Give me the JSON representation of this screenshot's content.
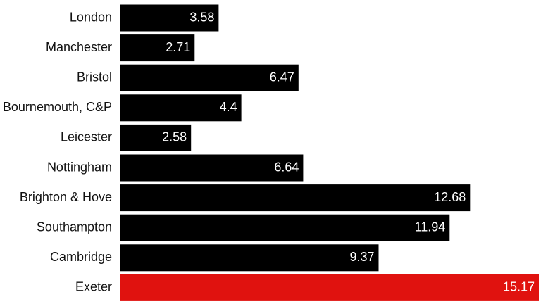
{
  "chart_data": {
    "type": "bar",
    "orientation": "horizontal",
    "categories": [
      "London",
      "Manchester",
      "Bristol",
      "Bournemouth, C&P",
      "Leicester",
      "Nottingham",
      "Brighton & Hove",
      "Southampton",
      "Cambridge",
      "Exeter"
    ],
    "values": [
      3.58,
      2.71,
      6.47,
      4.4,
      2.58,
      6.64,
      12.68,
      11.94,
      9.37,
      15.17
    ],
    "value_labels": [
      "3.58",
      "2.71",
      "6.47",
      "4.4",
      "2.58",
      "6.64",
      "12.68",
      "11.94",
      "9.37",
      "15.17"
    ],
    "highlight_category": "Exeter",
    "xlim": [
      0,
      15.17
    ],
    "grid": false,
    "legend": "none",
    "colors": {
      "bar": "#000000",
      "highlight": "#e0120f",
      "value_text": "#ffffff",
      "category_text": "#111111"
    }
  }
}
